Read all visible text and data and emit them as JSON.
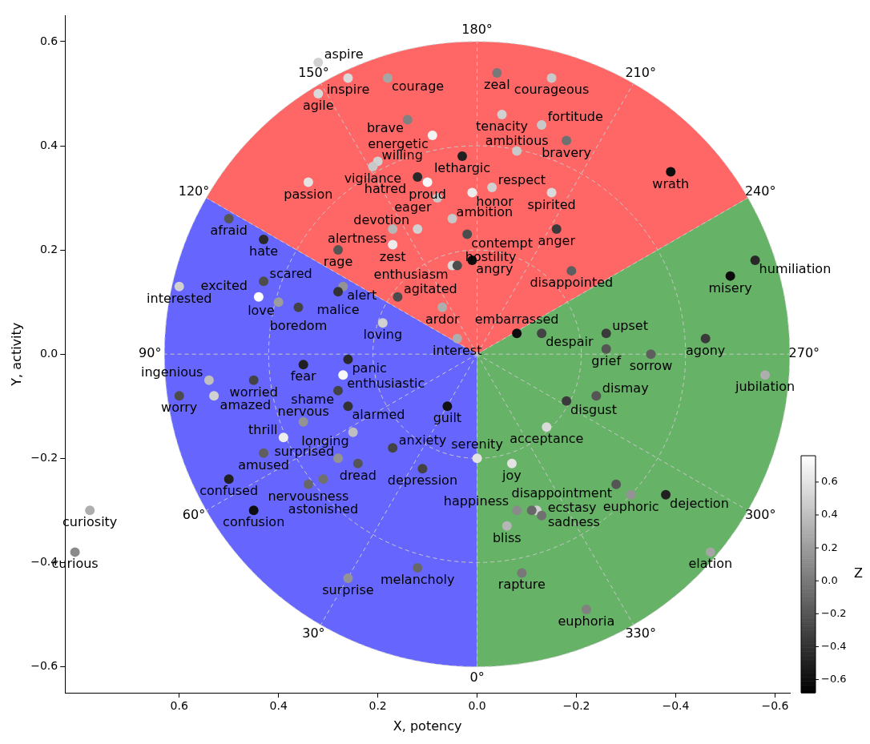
{
  "chart_data": {
    "type": "scatter",
    "xlabel": "X, potency",
    "ylabel": "Y, activity",
    "clabel": "Z",
    "marker": "circle",
    "grid": true,
    "xlim": [
      0.83,
      -0.63
    ],
    "ylim": [
      -0.65,
      0.65
    ],
    "xticks": [
      0.6,
      0.4,
      0.2,
      {
        "value": 0,
        "label": "0.0"
      },
      {
        "value": -0.2,
        "label": "−0.2"
      },
      {
        "value": -0.4,
        "label": "−0.4"
      },
      {
        "value": -0.6,
        "label": "−0.6"
      }
    ],
    "yticks": [
      {
        "value": -0.6,
        "label": "−0.6"
      },
      {
        "value": -0.4,
        "label": "−0.4"
      },
      {
        "value": -0.2,
        "label": "−0.2"
      },
      {
        "value": 0,
        "label": "0.0"
      },
      0.2,
      0.4,
      0.6
    ],
    "clim": [
      -0.68,
      0.76
    ],
    "cticks": [
      {
        "value": -0.6,
        "label": "−0.6"
      },
      {
        "value": -0.4,
        "label": "−0.4"
      },
      {
        "value": -0.2,
        "label": "−0.2"
      },
      {
        "value": 0,
        "label": "0.0"
      },
      0.2,
      0.4,
      0.6
    ],
    "annotations": [
      "0°",
      "30°",
      "60°",
      "90°",
      "120°",
      "150°",
      "180°",
      "210°",
      "240°",
      "270°",
      "300°",
      "330°"
    ],
    "value_labels": [
      "aspire",
      "inspire",
      "agile",
      "courage",
      "brave",
      "energetic",
      "willing",
      "vigilance",
      "passion",
      "lethargic",
      "hatred",
      "proud",
      "honor",
      "eager",
      "ambition",
      "devotion",
      "contempt",
      "alertness",
      "zest",
      "rage",
      "angry",
      "enthusiasm",
      "hostility",
      "afraid",
      "hate",
      "interested",
      "scared",
      "alert",
      "malice",
      "excited",
      "love",
      "boredom",
      "agitated",
      "ardor",
      "loving",
      "interest",
      "zeal",
      "courageous",
      "tenacity",
      "fortitude",
      "bravery",
      "ambitious",
      "wrath",
      "respect",
      "spirited",
      "anger",
      "disappointed",
      "humiliation",
      "misery",
      "embarrassed",
      "despair",
      "upset",
      "grief",
      "sorrow",
      "agony",
      "panic",
      "fear",
      "enthusiastic",
      "ingenious",
      "worried",
      "shame",
      "worry",
      "amazed",
      "alarmed",
      "guilt",
      "nervous",
      "longing",
      "thrill",
      "anxiety",
      "amused",
      "surprised",
      "dread",
      "depression",
      "confused",
      "nervousness",
      "astonished",
      "confusion",
      "curiosity",
      "curious",
      "melancholy",
      "surprise",
      "jubilation",
      "disgust",
      "dismay",
      "acceptance",
      "serenity",
      "joy",
      "disappointment",
      "euphoric",
      "dejection",
      "happiness",
      "sadness",
      null,
      "ecstasy",
      "bliss",
      "elation",
      "rapture",
      "euphoria"
    ],
    "x": [
      0.32,
      0.26,
      0.32,
      0.18,
      0.14,
      0.09,
      0.2,
      0.21,
      0.34,
      0.03,
      0.12,
      0.1,
      0.01,
      0.08,
      0.05,
      0.12,
      0.02,
      0.17,
      0.17,
      0.28,
      0.01,
      0.05,
      0.04,
      0.5,
      0.43,
      0.6,
      0.43,
      0.27,
      0.28,
      0.44,
      0.4,
      0.36,
      0.16,
      0.07,
      0.19,
      0.04,
      -0.04,
      -0.15,
      -0.05,
      -0.13,
      -0.18,
      -0.08,
      -0.39,
      -0.03,
      -0.15,
      -0.16,
      -0.19,
      -0.56,
      -0.51,
      -0.08,
      -0.13,
      -0.26,
      -0.26,
      -0.35,
      -0.46,
      0.26,
      0.35,
      0.27,
      0.54,
      0.45,
      0.28,
      0.6,
      0.53,
      0.26,
      0.06,
      0.35,
      0.25,
      0.39,
      0.17,
      0.43,
      0.28,
      0.24,
      0.11,
      0.5,
      0.34,
      0.31,
      0.45,
      0.78,
      0.81,
      0.12,
      0.26,
      -0.58,
      -0.18,
      -0.24,
      -0.14,
      0,
      -0.07,
      -0.28,
      -0.31,
      -0.38,
      -0.08,
      -0.12,
      -0.11,
      -0.13,
      -0.06,
      -0.47,
      -0.09,
      -0.22
    ],
    "values": [
      0.56,
      0.53,
      0.5,
      0.53,
      0.45,
      0.42,
      0.37,
      0.36,
      0.33,
      0.38,
      0.34,
      0.33,
      0.31,
      0.3,
      0.26,
      0.24,
      0.23,
      0.24,
      0.21,
      0.2,
      0.18,
      0.17,
      0.17,
      0.26,
      0.22,
      0.13,
      0.14,
      0.13,
      0.12,
      0.11,
      0.1,
      0.09,
      0.11,
      0.09,
      0.06,
      0.03,
      0.54,
      0.53,
      0.46,
      0.44,
      0.41,
      0.39,
      0.35,
      0.32,
      0.31,
      0.24,
      0.16,
      0.18,
      0.15,
      0.04,
      0.04,
      0.04,
      0.01,
      0,
      0.03,
      -0.01,
      -0.02,
      -0.04,
      -0.05,
      -0.05,
      -0.07,
      -0.08,
      -0.08,
      -0.1,
      -0.1,
      -0.13,
      -0.15,
      -0.16,
      -0.18,
      -0.19,
      -0.2,
      -0.21,
      -0.22,
      -0.24,
      -0.25,
      -0.24,
      -0.3,
      -0.3,
      -0.38,
      -0.41,
      -0.43,
      -0.04,
      -0.09,
      -0.08,
      -0.14,
      -0.2,
      -0.21,
      -0.25,
      -0.27,
      -0.27,
      -0.3,
      -0.3,
      -0.3,
      -0.31,
      -0.33,
      -0.38,
      -0.42,
      -0.49
    ],
    "cvalues": [
      0.5,
      0.55,
      0.55,
      0.25,
      0.05,
      0.7,
      0.5,
      0.45,
      0.6,
      -0.5,
      -0.45,
      0.72,
      0.65,
      0.45,
      0.45,
      0.5,
      -0.25,
      0.35,
      0.65,
      -0.2,
      -0.6,
      0.55,
      -0.25,
      -0.2,
      -0.45,
      0.5,
      -0.25,
      0.15,
      -0.4,
      0.76,
      0.2,
      -0.3,
      -0.25,
      0.3,
      0.5,
      0.3,
      0,
      0.45,
      0.5,
      0.45,
      -0.05,
      0.45,
      -0.6,
      0.5,
      0.55,
      -0.35,
      -0.15,
      -0.45,
      -0.62,
      -0.6,
      -0.3,
      -0.35,
      -0.2,
      -0.15,
      -0.35,
      -0.45,
      -0.5,
      0.72,
      0.4,
      -0.3,
      -0.3,
      -0.25,
      0.5,
      -0.4,
      -0.58,
      0.15,
      0.4,
      0.65,
      -0.3,
      -0.15,
      0.15,
      -0.2,
      -0.3,
      -0.5,
      -0.1,
      -0.05,
      -0.6,
      0.3,
      0.1,
      -0.1,
      0.15,
      0.3,
      -0.35,
      -0.2,
      0.55,
      0.6,
      0.6,
      -0.2,
      0.15,
      -0.5,
      0.1,
      0.5,
      -0.1,
      -0.05,
      0.35,
      0.25,
      0,
      0.05
    ]
  }
}
